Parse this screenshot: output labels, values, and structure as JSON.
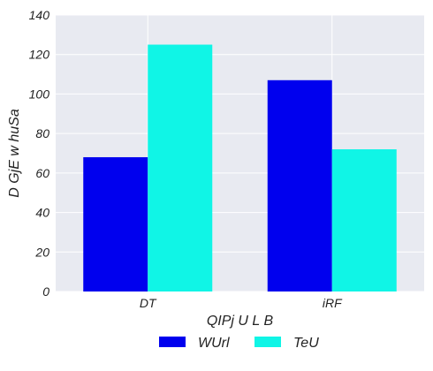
{
  "chart_data": {
    "type": "bar",
    "categories": [
      "DT",
      "iRF"
    ],
    "series": [
      {
        "name": "WUrl",
        "values": [
          68,
          107
        ],
        "color": "#0000ee"
      },
      {
        "name": "TeU",
        "values": [
          125,
          72
        ],
        "color": "#10f5e6"
      }
    ],
    "title": "",
    "xlabel": "QIPj U L B",
    "ylabel": "D  GjE w huSa",
    "ylim": [
      0,
      140
    ],
    "yticks": [
      0,
      20,
      40,
      60,
      80,
      100,
      120,
      140
    ],
    "grid": true,
    "legend": "bottom-center",
    "background_color": "#e8eaf1",
    "grid_color": "#ffffff"
  }
}
